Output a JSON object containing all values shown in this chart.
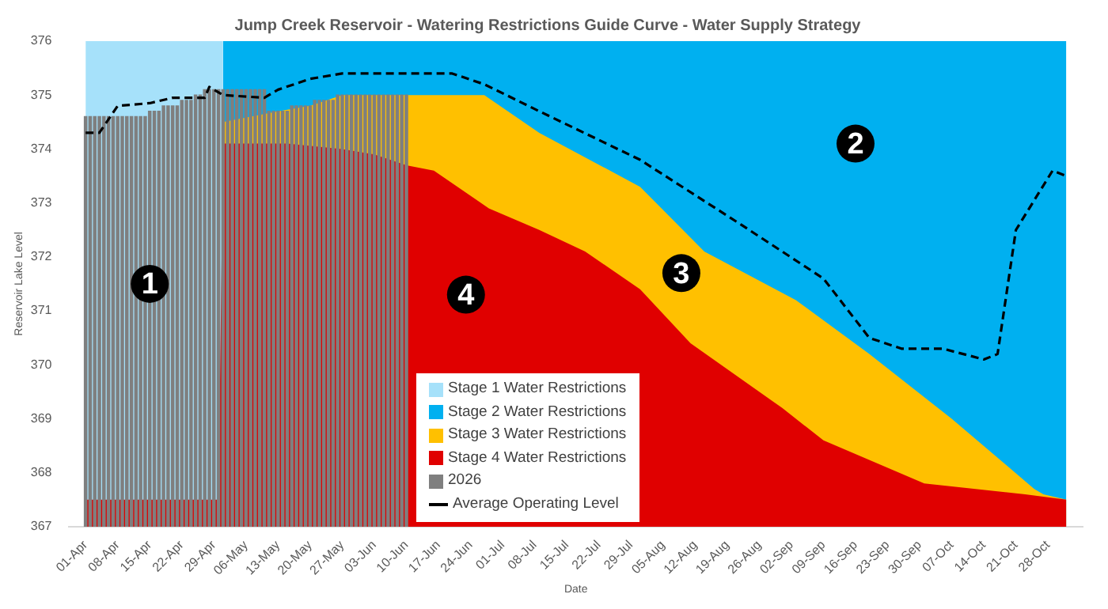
{
  "chart_data": {
    "type": "area",
    "title": "Jump Creek Reservoir - Watering Restrictions Guide Curve - Water Supply Strategy",
    "xlabel": "Date",
    "ylabel": "Reservoir Lake Level",
    "xlim": [
      "--04-01",
      "--11-01"
    ],
    "ylim": [
      367,
      376
    ],
    "yticks": [
      367,
      368,
      369,
      370,
      371,
      372,
      373,
      374,
      375,
      376
    ],
    "xticks": [
      {
        "value": "--04-01",
        "label": "01-Apr"
      },
      {
        "value": "--04-08",
        "label": "08-Apr"
      },
      {
        "value": "--04-15",
        "label": "15-Apr"
      },
      {
        "value": "--04-22",
        "label": "22-Apr"
      },
      {
        "value": "--04-29",
        "label": "29-Apr"
      },
      {
        "value": "--05-06",
        "label": "06-May"
      },
      {
        "value": "--05-13",
        "label": "13-May"
      },
      {
        "value": "--05-20",
        "label": "20-May"
      },
      {
        "value": "--05-27",
        "label": "27-May"
      },
      {
        "value": "--06-03",
        "label": "03-Jun"
      },
      {
        "value": "--06-10",
        "label": "10-Jun"
      },
      {
        "value": "--06-17",
        "label": "17-Jun"
      },
      {
        "value": "--06-24",
        "label": "24-Jun"
      },
      {
        "value": "--07-01",
        "label": "01-Jul"
      },
      {
        "value": "--07-08",
        "label": "08-Jul"
      },
      {
        "value": "--07-15",
        "label": "15-Jul"
      },
      {
        "value": "--07-22",
        "label": "22-Jul"
      },
      {
        "value": "--07-29",
        "label": "29-Jul"
      },
      {
        "value": "--08-05",
        "label": "05-Aug"
      },
      {
        "value": "--08-12",
        "label": "12-Aug"
      },
      {
        "value": "--08-19",
        "label": "19-Aug"
      },
      {
        "value": "--08-26",
        "label": "26-Aug"
      },
      {
        "value": "--09-02",
        "label": "02-Sep"
      },
      {
        "value": "--09-09",
        "label": "09-Sep"
      },
      {
        "value": "--09-16",
        "label": "16-Sep"
      },
      {
        "value": "--09-23",
        "label": "23-Sep"
      },
      {
        "value": "--09-30",
        "label": "30-Sep"
      },
      {
        "value": "--10-07",
        "label": "07-Oct"
      },
      {
        "value": "--10-14",
        "label": "14-Oct"
      },
      {
        "value": "--10-21",
        "label": "21-Oct"
      },
      {
        "value": "--10-28",
        "label": "28-Oct"
      }
    ],
    "legend": "bottom",
    "series": [
      {
        "name": "Stage 1 Water Restrictions",
        "color": "#a6e1fa",
        "x": [
          "--04-01",
          "--05-01"
        ],
        "values": [
          376,
          376
        ]
      },
      {
        "name": "Stage 2 Water Restrictions",
        "color": "#00b0f0",
        "x": [
          "--05-01",
          "--11-01"
        ],
        "values": [
          376,
          376
        ]
      },
      {
        "name": "Stage 3 Water Restrictions",
        "color": "#ffc000",
        "x": [
          "--05-01",
          "--05-13",
          "--05-20",
          "--05-27",
          "--06-27",
          "--07-09",
          "--07-31",
          "--08-14",
          "--09-03",
          "--09-19",
          "--10-07",
          "--10-25",
          "--10-27",
          "--11-01"
        ],
        "values": [
          374.5,
          374.7,
          374.8,
          375.0,
          375.0,
          374.3,
          373.3,
          372.1,
          371.2,
          370.2,
          369.0,
          367.7,
          367.6,
          367.5
        ]
      },
      {
        "name": "Stage 4 Water Restrictions",
        "color": "#e00000",
        "x": [
          "--04-01",
          "--04-30",
          "--05-01",
          "--05-15",
          "--05-27",
          "--06-03",
          "--06-10",
          "--06-16",
          "--06-28",
          "--07-09",
          "--07-19",
          "--07-31",
          "--08-11",
          "--08-31",
          "--09-09",
          "--10-01",
          "--10-23",
          "--11-01"
        ],
        "values": [
          367.5,
          367.5,
          374.1,
          374.1,
          374.0,
          373.9,
          373.7,
          373.6,
          372.9,
          372.5,
          372.1,
          371.4,
          370.4,
          369.2,
          368.6,
          367.8,
          367.6,
          367.5
        ]
      },
      {
        "name": "2026",
        "type": "bar",
        "color": "#7f7f7f",
        "x": [
          "--04-01",
          "--04-02",
          "--04-03",
          "--04-04",
          "--04-05",
          "--04-06",
          "--04-07",
          "--04-08",
          "--04-09",
          "--04-10",
          "--04-11",
          "--04-12",
          "--04-13",
          "--04-14",
          "--04-15",
          "--04-16",
          "--04-17",
          "--04-18",
          "--04-19",
          "--04-20",
          "--04-21",
          "--04-22",
          "--04-23",
          "--04-24",
          "--04-25",
          "--04-26",
          "--04-27",
          "--04-28",
          "--04-29",
          "--04-30",
          "--05-01",
          "--05-02",
          "--05-03",
          "--05-04",
          "--05-05",
          "--05-06",
          "--05-07",
          "--05-08",
          "--05-09",
          "--05-10",
          "--05-11",
          "--05-12",
          "--05-13",
          "--05-14",
          "--05-15",
          "--05-16",
          "--05-17",
          "--05-18",
          "--05-19",
          "--05-20",
          "--05-21",
          "--05-22",
          "--05-23",
          "--05-24",
          "--05-25",
          "--05-26",
          "--05-27",
          "--05-28",
          "--05-29",
          "--05-30",
          "--05-31",
          "--06-01",
          "--06-02",
          "--06-03",
          "--06-04",
          "--06-05",
          "--06-06",
          "--06-07",
          "--06-08",
          "--06-09",
          "--06-10"
        ],
        "values": [
          374.6,
          374.6,
          374.6,
          374.6,
          374.6,
          374.6,
          374.6,
          374.6,
          374.6,
          374.6,
          374.6,
          374.6,
          374.6,
          374.6,
          374.7,
          374.7,
          374.7,
          374.8,
          374.8,
          374.8,
          374.8,
          374.9,
          374.9,
          374.9,
          375.0,
          375.0,
          375.1,
          375.1,
          375.1,
          375.1,
          375.1,
          375.1,
          375.1,
          375.1,
          375.1,
          375.1,
          375.1,
          375.1,
          375.1,
          375.1,
          374.7,
          374.7,
          374.7,
          374.7,
          374.7,
          374.8,
          374.8,
          374.8,
          374.8,
          374.8,
          374.9,
          374.9,
          374.9,
          374.9,
          374.9,
          375.0,
          375.0,
          375.0,
          375.0,
          375.0,
          375.0,
          375.0,
          375.0,
          375.0,
          375.0,
          375.0,
          375.0,
          375.0,
          375.0,
          375.0,
          375.0
        ]
      },
      {
        "name": "Average Operating Level",
        "type": "line",
        "color": "#000000",
        "line_style": "dashed",
        "marker": "none",
        "x": [
          "--04-01",
          "--04-04",
          "--04-08",
          "--04-15",
          "--04-20",
          "--04-27",
          "--04-28",
          "--05-01",
          "--05-10",
          "--05-13",
          "--05-20",
          "--05-27",
          "--06-20",
          "--06-27",
          "--07-09",
          "--07-31",
          "--08-22",
          "--09-09",
          "--09-19",
          "--09-26",
          "--10-05",
          "--10-14",
          "--10-17",
          "--10-21",
          "--10-29",
          "--11-01"
        ],
        "values": [
          374.3,
          374.3,
          374.8,
          374.85,
          374.95,
          374.95,
          375.15,
          375.0,
          374.95,
          375.1,
          375.3,
          375.4,
          375.4,
          375.2,
          374.7,
          373.8,
          372.6,
          371.6,
          370.5,
          370.3,
          370.3,
          370.1,
          370.2,
          372.5,
          373.6,
          373.5
        ]
      }
    ],
    "annotations": [
      {
        "text": "1",
        "x": "--04-15",
        "y": 371.5
      },
      {
        "text": "2",
        "x": "--09-16",
        "y": 374.1
      },
      {
        "text": "3",
        "x": "--08-09",
        "y": 371.7
      },
      {
        "text": "4",
        "x": "--06-23",
        "y": 371.3
      }
    ]
  }
}
